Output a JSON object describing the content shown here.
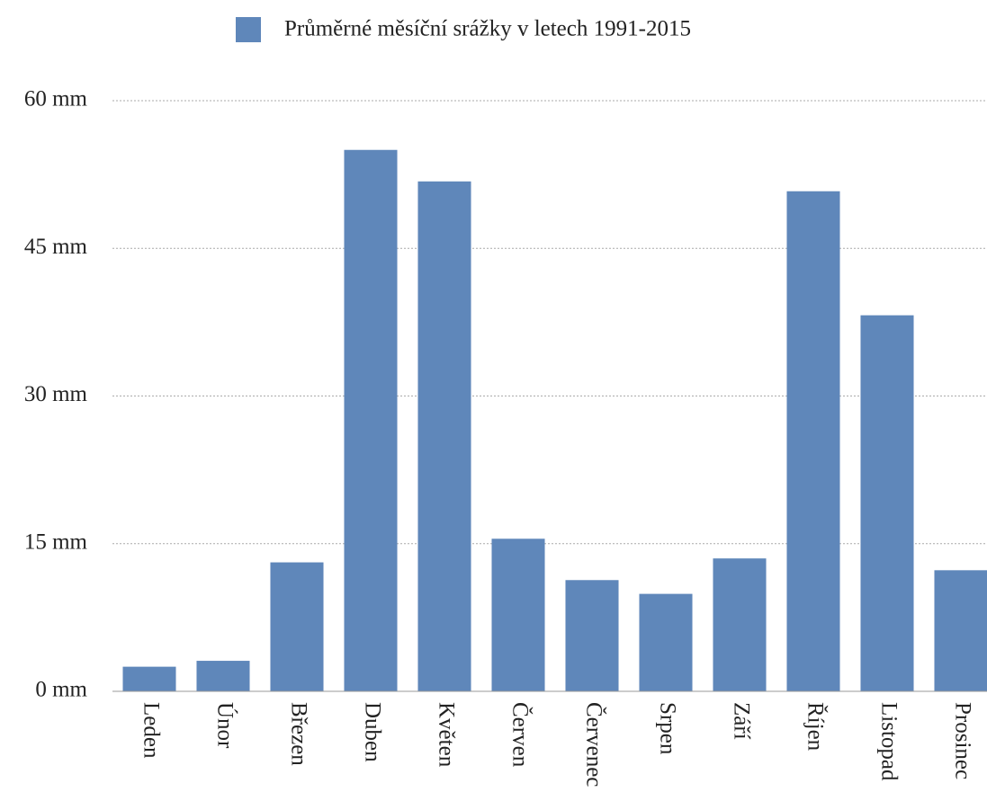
{
  "chart_data": {
    "type": "bar",
    "legend": "Průměrné měsíční srážky v letech 1991-2015",
    "categories": [
      "Leden",
      "Únor",
      "Březen",
      "Duben",
      "Květen",
      "Červen",
      "Červenec",
      "Srpen",
      "Září",
      "Říjen",
      "Listopad",
      "Prosinec"
    ],
    "values": [
      2.5,
      3.1,
      13.1,
      55.0,
      51.8,
      15.5,
      11.3,
      9.9,
      13.5,
      50.8,
      38.2,
      12.3
    ],
    "color": "#5f87ba",
    "ylim": [
      0,
      60
    ],
    "yticks": [
      {
        "value": 0,
        "label": "0 mm"
      },
      {
        "value": 15,
        "label": "15 mm"
      },
      {
        "value": 30,
        "label": "30 mm"
      },
      {
        "value": 45,
        "label": "45 mm"
      },
      {
        "value": 60,
        "label": "60 mm"
      }
    ],
    "grid": true
  }
}
